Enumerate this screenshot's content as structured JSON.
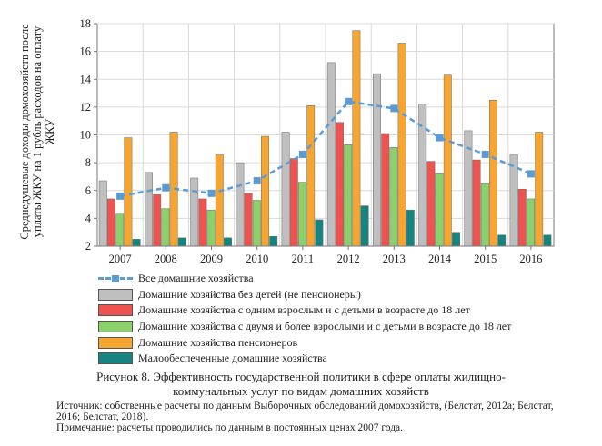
{
  "chart_data": {
    "type": "bar",
    "ylabel": "Среднедушевые доходы домохозяйств после уплаты ЖКУ на 1 рубль расходов на оплату ЖКУ",
    "ylim": [
      2,
      18
    ],
    "yticks": [
      2,
      4,
      6,
      8,
      10,
      12,
      14,
      16,
      18
    ],
    "categories": [
      "2007",
      "2008",
      "2009",
      "2010",
      "2011",
      "2012",
      "2013",
      "2014",
      "2015",
      "2016"
    ],
    "line_series": {
      "name": "Все домашние хозяйства",
      "color": "#5b9bd5",
      "values": [
        5.6,
        6.2,
        5.8,
        6.7,
        8.6,
        12.4,
        11.9,
        9.8,
        8.6,
        7.2
      ]
    },
    "series": [
      {
        "name": "Домашние хозяйства без детей (не пенсионеры)",
        "color": "#bfbfbf",
        "values": [
          6.7,
          7.3,
          6.9,
          8.0,
          10.2,
          15.2,
          14.4,
          12.2,
          10.3,
          8.6
        ]
      },
      {
        "name": "Домашние хозяйства с одним взрослым и с детьми в возрасте до 18 лет",
        "color": "#ef5350",
        "values": [
          5.4,
          5.7,
          5.4,
          5.8,
          8.3,
          10.9,
          10.1,
          8.1,
          8.2,
          6.1
        ]
      },
      {
        "name": "Домашние хозяйства с двумя и более взрослыми и с детьми в возрасте до 18 лет",
        "color": "#8bd06b",
        "values": [
          4.3,
          4.7,
          4.6,
          5.3,
          6.6,
          9.3,
          9.1,
          7.2,
          6.5,
          5.4
        ]
      },
      {
        "name": "Домашние хозяйства пенсионеров",
        "color": "#f7a531",
        "values": [
          9.8,
          10.2,
          8.6,
          9.9,
          12.1,
          17.5,
          16.6,
          14.3,
          12.5,
          10.2
        ]
      },
      {
        "name": "Малообеспеченные домашние хозяйства",
        "color": "#16857f",
        "values": [
          2.5,
          2.6,
          2.6,
          2.7,
          3.9,
          4.9,
          4.6,
          3.0,
          2.8,
          2.8
        ]
      }
    ],
    "grid": true,
    "legend_position": "bottom"
  },
  "caption": {
    "line1": "Рисунок 8. Эффективность государственной политики в сфере оплаты жилищно-",
    "line2": "коммунальных услуг по видам домашних хозяйств"
  },
  "notes": {
    "source": "Источник: собственные расчеты по данным Выборочных обследований домохозяйств, (Белстат, 2012a; Белстат, 2016; Белстат, 2018).",
    "remark": "Примечание: расчеты проводились по данным в постоянных ценах 2007 года."
  }
}
